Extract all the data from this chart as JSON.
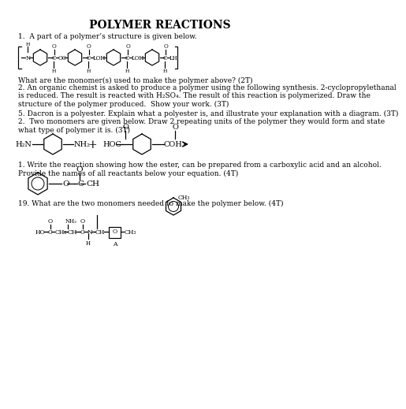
{
  "title": "POLYMER REACTIONS",
  "background": "#ffffff",
  "text_color": "#000000",
  "q1_text": "1.  A part of a polymer’s structure is given below.",
  "q1_answer": "What are the monomer(s) used to make the polymer above? (2T)",
  "q2_text": "2. An organic chemist is asked to produce a polymer using the following synthesis. 2-cyclopropylethanal\nis reduced. The result is reacted with H₂SO₄. The result of this reaction is polymerized. Draw the\nstructure of the polymer produced.  Show your work. (3T)",
  "q5_text": "5. Dacron is a polyester. Explain what a polyester is, and illustrate your explanation with a diagram. (3T)",
  "q2b_text": "2.  Two monomers are given below. Draw 2 repeating units of the polymer they would form and state\nwhat type of polymer it is. (3T)",
  "q1b_text": "1. Write the reaction showing how the ester, can be prepared from a carboxylic acid and an alcohol.\nProvide the names of all reactants below your equation. (4T)",
  "q19_text": "19. What are the two monomers needed to make the polymer below. (4T)"
}
